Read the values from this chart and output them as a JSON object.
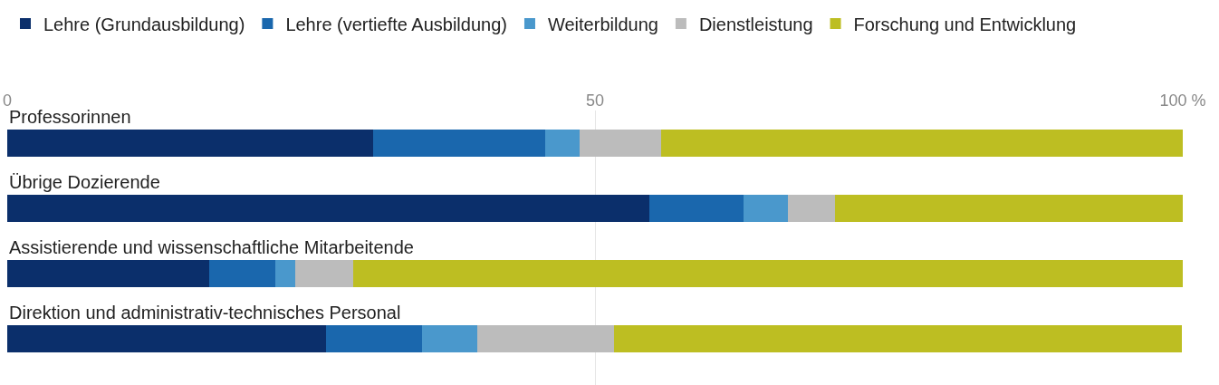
{
  "chart_data": {
    "type": "bar",
    "orientation": "horizontal",
    "stacked": true,
    "categories": [
      "Professorinnen",
      "Übrige Dozierende",
      "Assistierende und wissenschaftliche Mitarbeitende",
      "Direktion und administrativ-technisches Personal"
    ],
    "series": [
      {
        "name": "Lehre (Grundausbildung)",
        "color": "#0b2f6b",
        "values": [
          31.1,
          54.6,
          17.2,
          27.1
        ]
      },
      {
        "name": "Lehre (vertiefte Ausbildung)",
        "color": "#1a67ad",
        "values": [
          14.7,
          8.0,
          5.6,
          8.2
        ]
      },
      {
        "name": "Weiterbildung",
        "color": "#4a98cc",
        "values": [
          2.9,
          3.8,
          1.7,
          4.7
        ]
      },
      {
        "name": "Dienstleistung",
        "color": "#bcbcbc",
        "values": [
          6.9,
          4.0,
          4.9,
          11.6
        ]
      },
      {
        "name": "Forschung und Entwicklung",
        "color": "#bdbe22",
        "values": [
          44.5,
          29.6,
          70.7,
          48.3
        ]
      }
    ],
    "xlim": [
      0,
      100
    ],
    "xticks": [
      0,
      50,
      {
        "value": 100,
        "label": "100 %"
      }
    ],
    "grid": "x",
    "legend": "top"
  }
}
